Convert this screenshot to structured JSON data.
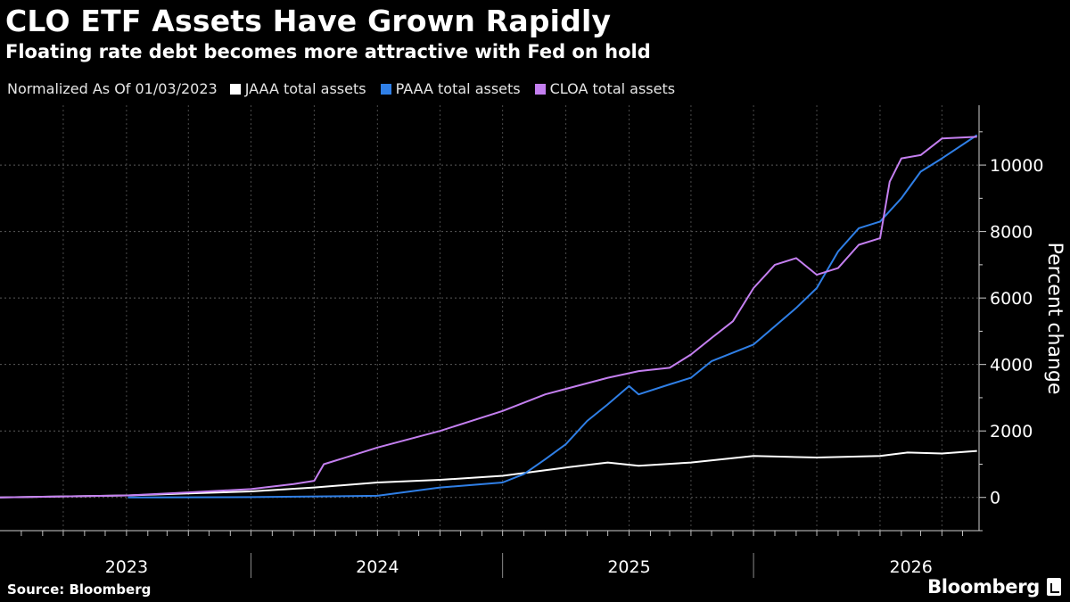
{
  "header": {
    "title": "CLO ETF Assets Have Grown Rapidly",
    "subtitle": "Floating rate debt becomes more attractive with Fed on hold"
  },
  "legend": {
    "note": "Normalized As Of 01/03/2023",
    "items": [
      {
        "label": "JAAA total assets",
        "color": "#ffffff"
      },
      {
        "label": "PAAA total assets",
        "color": "#2f7fe6"
      },
      {
        "label": "CLOA total assets",
        "color": "#c47ff0"
      }
    ]
  },
  "footer": {
    "source": "Source: Bloomberg",
    "brand": "Bloomberg"
  },
  "chart_data": {
    "type": "line",
    "ylabel": "Percent change",
    "ylim": [
      -1000,
      11800
    ],
    "yticks": [
      0,
      2000,
      4000,
      6000,
      8000,
      10000
    ],
    "ytick_labels": [
      "0",
      "2000",
      "4000",
      "6000",
      "8000",
      "10000"
    ],
    "xlim": [
      "2022-07-01",
      "2026-05-25"
    ],
    "year_labels": [
      {
        "label": "2023",
        "center": "2023-01-01"
      },
      {
        "label": "2024",
        "center": "2024-01-01"
      },
      {
        "label": "2025",
        "center": "2025-01-01"
      },
      {
        "label": "2026",
        "center": "2026-02-15"
      }
    ],
    "year_separators": [
      "2023-07-01",
      "2024-07-01",
      "2025-07-01"
    ],
    "grid": true,
    "series": [
      {
        "name": "JAAA total assets",
        "color": "#ffffff",
        "points": [
          [
            "2022-07-01",
            0
          ],
          [
            "2022-10-01",
            30
          ],
          [
            "2023-01-03",
            60
          ],
          [
            "2023-04-01",
            120
          ],
          [
            "2023-07-01",
            180
          ],
          [
            "2023-10-01",
            300
          ],
          [
            "2024-01-01",
            450
          ],
          [
            "2024-04-01",
            530
          ],
          [
            "2024-07-01",
            650
          ],
          [
            "2024-10-01",
            900
          ],
          [
            "2024-12-01",
            1050
          ],
          [
            "2025-01-15",
            950
          ],
          [
            "2025-04-01",
            1050
          ],
          [
            "2025-07-01",
            1250
          ],
          [
            "2025-10-01",
            1200
          ],
          [
            "2026-01-01",
            1250
          ],
          [
            "2026-02-10",
            1350
          ],
          [
            "2026-04-01",
            1320
          ],
          [
            "2026-05-22",
            1400
          ]
        ]
      },
      {
        "name": "PAAA total assets",
        "color": "#2f7fe6",
        "points": [
          [
            "2023-01-03",
            0
          ],
          [
            "2023-07-01",
            10
          ],
          [
            "2024-01-01",
            50
          ],
          [
            "2024-04-01",
            300
          ],
          [
            "2024-07-01",
            450
          ],
          [
            "2024-08-01",
            700
          ],
          [
            "2024-09-01",
            1150
          ],
          [
            "2024-10-01",
            1600
          ],
          [
            "2024-11-01",
            2300
          ],
          [
            "2024-12-01",
            2800
          ],
          [
            "2025-01-01",
            3350
          ],
          [
            "2025-01-15",
            3100
          ],
          [
            "2025-03-01",
            3400
          ],
          [
            "2025-04-01",
            3600
          ],
          [
            "2025-05-01",
            4100
          ],
          [
            "2025-07-01",
            4600
          ],
          [
            "2025-09-01",
            5700
          ],
          [
            "2025-10-01",
            6300
          ],
          [
            "2025-11-01",
            7400
          ],
          [
            "2025-12-01",
            8100
          ],
          [
            "2026-01-01",
            8300
          ],
          [
            "2026-02-01",
            9000
          ],
          [
            "2026-03-01",
            9800
          ],
          [
            "2026-04-01",
            10200
          ],
          [
            "2026-05-22",
            10900
          ]
        ]
      },
      {
        "name": "CLOA total assets",
        "color": "#c47ff0",
        "points": [
          [
            "2022-07-01",
            0
          ],
          [
            "2023-01-03",
            60
          ],
          [
            "2023-04-01",
            150
          ],
          [
            "2023-07-01",
            250
          ],
          [
            "2023-09-01",
            400
          ],
          [
            "2023-10-01",
            500
          ],
          [
            "2023-10-15",
            1000
          ],
          [
            "2023-12-01",
            1300
          ],
          [
            "2024-01-01",
            1500
          ],
          [
            "2024-04-01",
            2000
          ],
          [
            "2024-07-01",
            2600
          ],
          [
            "2024-09-01",
            3100
          ],
          [
            "2024-12-01",
            3600
          ],
          [
            "2025-01-15",
            3800
          ],
          [
            "2025-03-01",
            3900
          ],
          [
            "2025-04-01",
            4300
          ],
          [
            "2025-05-01",
            4800
          ],
          [
            "2025-06-01",
            5300
          ],
          [
            "2025-07-01",
            6300
          ],
          [
            "2025-08-01",
            7000
          ],
          [
            "2025-09-01",
            7200
          ],
          [
            "2025-10-01",
            6700
          ],
          [
            "2025-11-01",
            6900
          ],
          [
            "2025-12-01",
            7600
          ],
          [
            "2026-01-01",
            7800
          ],
          [
            "2026-01-15",
            9500
          ],
          [
            "2026-02-01",
            10200
          ],
          [
            "2026-03-01",
            10300
          ],
          [
            "2026-04-01",
            10800
          ],
          [
            "2026-05-22",
            10850
          ]
        ]
      }
    ]
  }
}
